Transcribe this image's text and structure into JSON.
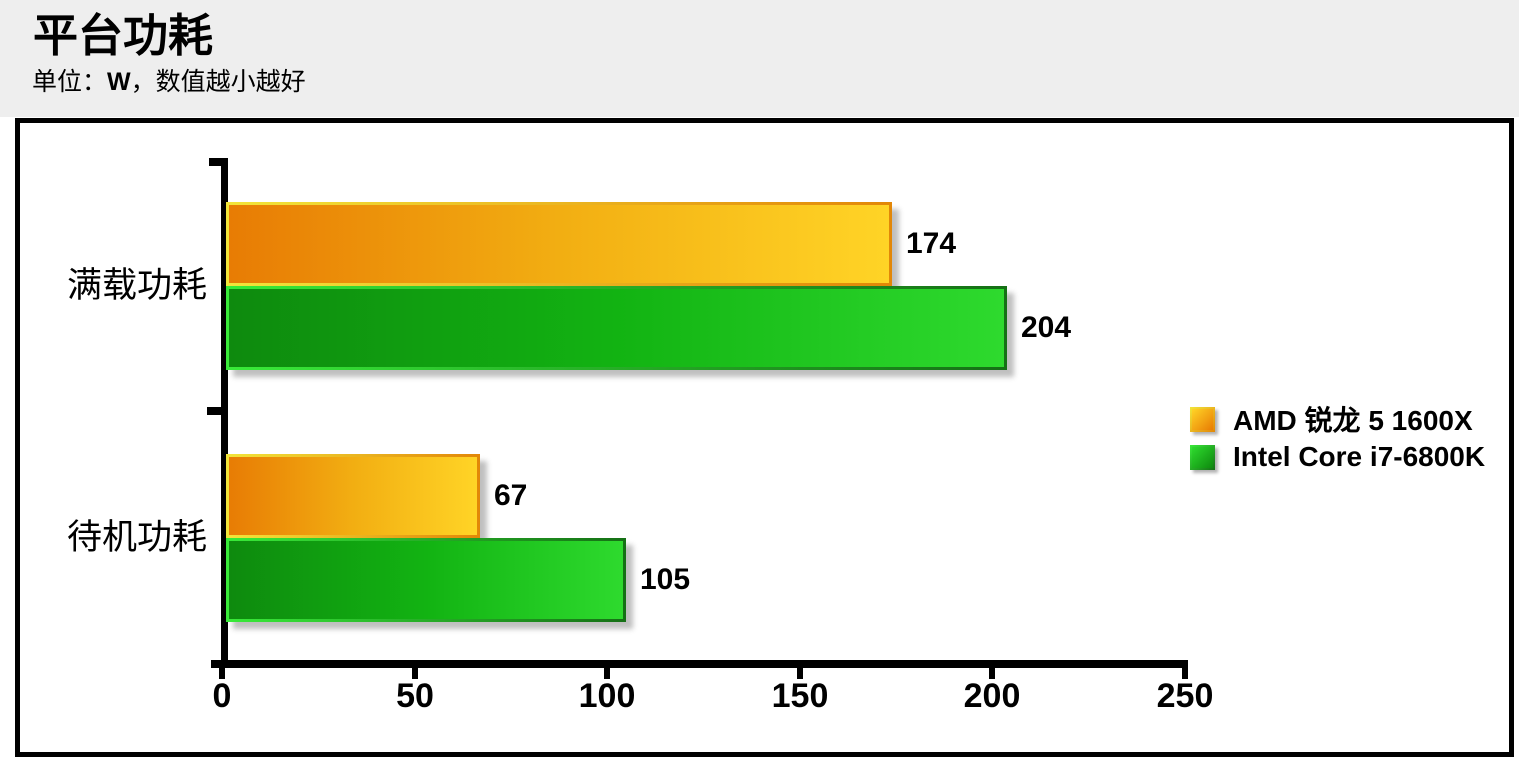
{
  "header": {
    "title": "平台功耗",
    "subtitle": {
      "prefix": "单位：",
      "unit": "W",
      "suffix": "，数值越小越好"
    }
  },
  "chart_data": {
    "type": "bar",
    "orientation": "horizontal",
    "title": "平台功耗",
    "unit": "W",
    "value_note": "数值越小越好",
    "categories": [
      "满载功耗",
      "待机功耗"
    ],
    "series": [
      {
        "name": "AMD 锐龙 5 1600X",
        "values": [
          174,
          67
        ],
        "fill_gradient": [
          "#e87c04",
          "#f2ae12",
          "#ffd426"
        ],
        "edge_gradient": [
          "#f2e53a",
          "#e28708"
        ]
      },
      {
        "name": "Intel Core i7-6800K",
        "values": [
          204,
          105
        ],
        "fill_gradient": [
          "#0e8a0e",
          "#12b312",
          "#2eda2e"
        ],
        "edge_gradient": [
          "#39ea39",
          "#157015"
        ]
      }
    ],
    "xlim": [
      0,
      250
    ],
    "x_ticks": [
      0,
      50,
      100,
      150,
      200,
      250
    ],
    "grid": false,
    "legend_position": "middle-right"
  },
  "colors": {
    "header_background": "#eeeeee",
    "chart_background": "#ffffff",
    "frame": "#000000",
    "axis": "#000000",
    "text": "#000000"
  }
}
